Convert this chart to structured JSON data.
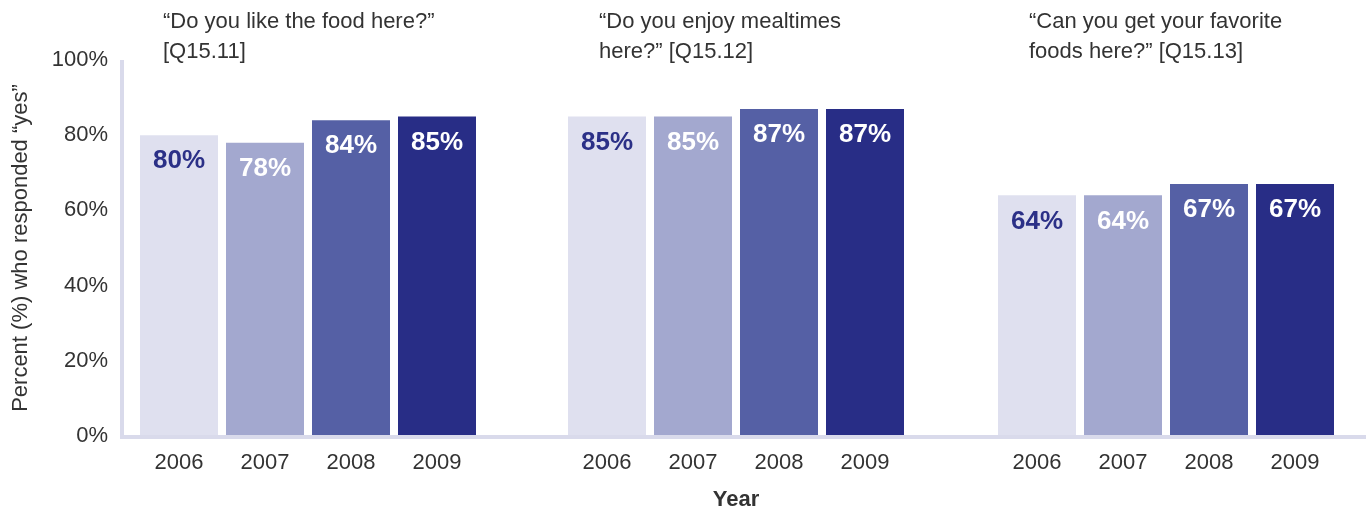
{
  "chart_data": [
    {
      "type": "bar",
      "title": "“Do you like the food here?” [Q15.11]",
      "ylabel": "Percent (%) who responded “yes”",
      "categories": [
        "2006",
        "2007",
        "2008",
        "2009"
      ],
      "values": [
        80,
        78,
        84,
        85
      ],
      "colors": [
        "#dfe0ef",
        "#a3a8cf",
        "#5560a5",
        "#282d86"
      ],
      "ylim": [
        0,
        100
      ],
      "yticks": [
        {
          "value": 0,
          "label": "0%"
        },
        {
          "value": 20,
          "label": "20%"
        },
        {
          "value": 40,
          "label": "40%"
        },
        {
          "value": 60,
          "label": "60%"
        },
        {
          "value": 80,
          "label": "80%"
        },
        {
          "value": 100,
          "label": "100%"
        }
      ],
      "value_labels": [
        "80%",
        "78%",
        "84%",
        "85%"
      ],
      "grid": false,
      "legend": false
    },
    {
      "type": "bar",
      "title": "“Do you enjoy mealtimes here?” [Q15.12]",
      "xlabel": "Year",
      "categories": [
        "2006",
        "2007",
        "2008",
        "2009"
      ],
      "values": [
        85,
        85,
        87,
        87
      ],
      "colors": [
        "#dfe0ef",
        "#a3a8cf",
        "#5560a5",
        "#282d86"
      ],
      "ylim": [
        0,
        100
      ],
      "value_labels": [
        "85%",
        "85%",
        "87%",
        "87%"
      ],
      "tick_labels": "x",
      "grid": false,
      "legend": false
    },
    {
      "type": "bar",
      "title": "“Can you get your favorite foods here?” [Q15.13]",
      "categories": [
        "2006",
        "2007",
        "2008",
        "2009"
      ],
      "values": [
        64,
        64,
        67,
        67
      ],
      "colors": [
        "#dfe0ef",
        "#a3a8cf",
        "#5560a5",
        "#282d86"
      ],
      "ylim": [
        0,
        100
      ],
      "value_labels": [
        "64%",
        "64%",
        "67%",
        "67%"
      ],
      "tick_labels": "x",
      "grid": false,
      "legend": false
    }
  ]
}
